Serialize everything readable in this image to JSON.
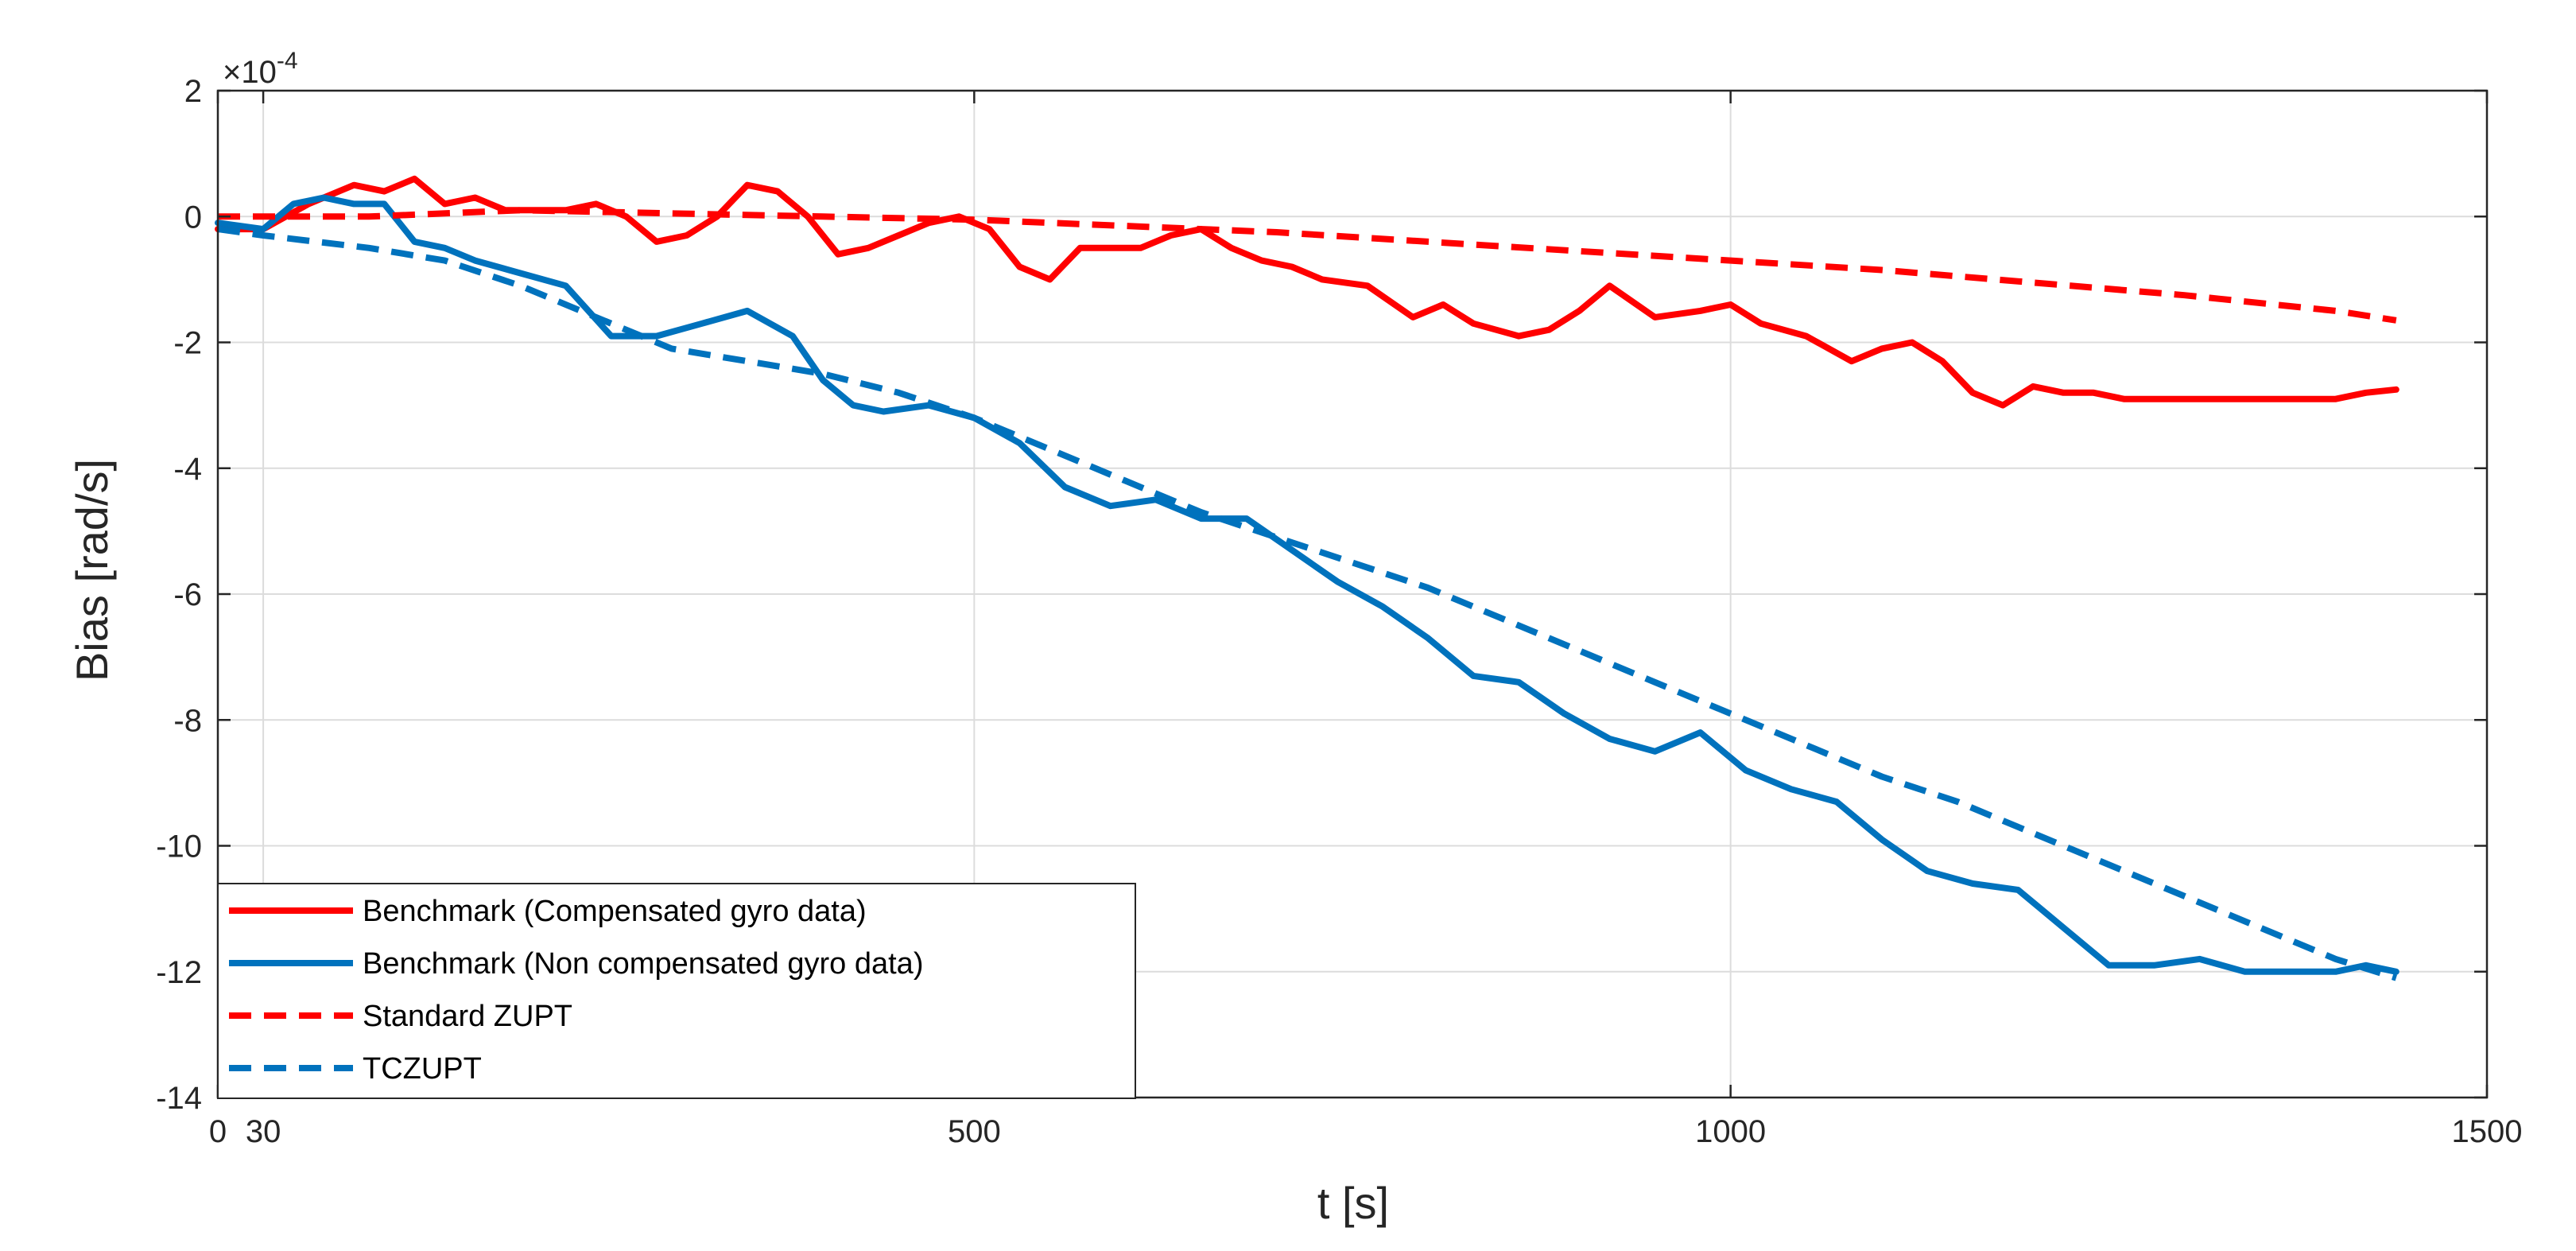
{
  "chart_data": {
    "type": "line",
    "title": "",
    "xlabel": "t [s]",
    "ylabel": "Bias [rad/s]",
    "y_exponent_label": "×10",
    "y_exponent_power": "-4",
    "xlim": [
      0,
      1500
    ],
    "ylim": [
      -14,
      2
    ],
    "xticks": [
      0,
      30,
      500,
      1000,
      1500
    ],
    "xtick_labels": [
      "0",
      "30",
      "500",
      "1000",
      "1500"
    ],
    "yticks": [
      2,
      0,
      -2,
      -4,
      -6,
      -8,
      -10,
      -12,
      -14
    ],
    "ytick_labels": [
      "2",
      "0",
      "-2",
      "-4",
      "-6",
      "-8",
      "-10",
      "-12",
      "-14"
    ],
    "grid": true,
    "legend_position": "bottom-left",
    "series": [
      {
        "name": "Benchmark (Compensated gyro data)",
        "color": "#ff0000",
        "style": "solid",
        "x": [
          0,
          30,
          60,
          90,
          110,
          130,
          150,
          170,
          190,
          210,
          230,
          250,
          270,
          290,
          310,
          330,
          350,
          370,
          390,
          410,
          430,
          450,
          470,
          490,
          510,
          530,
          550,
          570,
          590,
          610,
          630,
          650,
          670,
          690,
          710,
          730,
          760,
          790,
          810,
          830,
          860,
          880,
          900,
          920,
          950,
          980,
          1000,
          1020,
          1050,
          1080,
          1100,
          1120,
          1140,
          1160,
          1180,
          1200,
          1220,
          1240,
          1260,
          1280,
          1300,
          1320,
          1340,
          1360,
          1380,
          1400,
          1420,
          1440
        ],
        "values": [
          -0.2,
          -0.2,
          0.2,
          0.5,
          0.4,
          0.6,
          0.2,
          0.3,
          0.1,
          0.1,
          0.1,
          0.2,
          0.0,
          -0.4,
          -0.3,
          0.0,
          0.5,
          0.4,
          0.0,
          -0.6,
          -0.5,
          -0.3,
          -0.1,
          0.0,
          -0.2,
          -0.8,
          -1.0,
          -0.5,
          -0.5,
          -0.5,
          -0.3,
          -0.2,
          -0.5,
          -0.7,
          -0.8,
          -1.0,
          -1.1,
          -1.6,
          -1.4,
          -1.7,
          -1.9,
          -1.8,
          -1.5,
          -1.1,
          -1.6,
          -1.5,
          -1.4,
          -1.7,
          -1.9,
          -2.3,
          -2.1,
          -2.0,
          -2.3,
          -2.8,
          -3.0,
          -2.7,
          -2.8,
          -2.8,
          -2.9,
          -2.9,
          -2.9,
          -2.9,
          -2.9,
          -2.9,
          -2.9,
          -2.9,
          -2.8,
          -2.75
        ]
      },
      {
        "name": "Benchmark (Non compensated gyro data)",
        "color": "#0072bd",
        "style": "solid",
        "x": [
          0,
          30,
          50,
          70,
          90,
          110,
          130,
          150,
          170,
          200,
          230,
          260,
          290,
          320,
          350,
          380,
          400,
          420,
          440,
          470,
          500,
          530,
          560,
          590,
          620,
          650,
          680,
          710,
          740,
          770,
          800,
          830,
          860,
          890,
          920,
          950,
          980,
          1010,
          1040,
          1070,
          1100,
          1130,
          1160,
          1190,
          1220,
          1250,
          1280,
          1310,
          1340,
          1370,
          1400,
          1420,
          1440
        ],
        "values": [
          -0.1,
          -0.2,
          0.2,
          0.3,
          0.2,
          0.2,
          -0.4,
          -0.5,
          -0.7,
          -0.9,
          -1.1,
          -1.9,
          -1.9,
          -1.7,
          -1.5,
          -1.9,
          -2.6,
          -3.0,
          -3.1,
          -3.0,
          -3.2,
          -3.6,
          -4.3,
          -4.6,
          -4.5,
          -4.8,
          -4.8,
          -5.3,
          -5.8,
          -6.2,
          -6.7,
          -7.3,
          -7.4,
          -7.9,
          -8.3,
          -8.5,
          -8.2,
          -8.8,
          -9.1,
          -9.3,
          -9.9,
          -10.4,
          -10.6,
          -10.7,
          -11.3,
          -11.9,
          -11.9,
          -11.8,
          -12.0,
          -12.0,
          -12.0,
          -11.9,
          -12.0
        ]
      },
      {
        "name": "Standard ZUPT",
        "color": "#ff0000",
        "style": "dashed",
        "x": [
          0,
          100,
          200,
          300,
          400,
          500,
          600,
          700,
          800,
          900,
          1000,
          1100,
          1200,
          1300,
          1400,
          1440
        ],
        "values": [
          0.0,
          0.0,
          0.1,
          0.05,
          0.0,
          -0.05,
          -0.15,
          -0.25,
          -0.4,
          -0.55,
          -0.7,
          -0.85,
          -1.05,
          -1.25,
          -1.5,
          -1.65
        ]
      },
      {
        "name": "TCZUPT",
        "color": "#0072bd",
        "style": "dashed",
        "x": [
          0,
          30,
          100,
          150,
          200,
          250,
          300,
          350,
          400,
          450,
          500,
          550,
          600,
          650,
          700,
          750,
          800,
          850,
          900,
          950,
          1000,
          1050,
          1100,
          1150,
          1200,
          1250,
          1300,
          1350,
          1400,
          1440
        ],
        "values": [
          -0.2,
          -0.3,
          -0.5,
          -0.7,
          -1.1,
          -1.6,
          -2.1,
          -2.3,
          -2.5,
          -2.8,
          -3.2,
          -3.7,
          -4.2,
          -4.7,
          -5.1,
          -5.5,
          -5.9,
          -6.4,
          -6.9,
          -7.4,
          -7.9,
          -8.4,
          -8.9,
          -9.3,
          -9.8,
          -10.3,
          -10.8,
          -11.3,
          -11.8,
          -12.1
        ]
      }
    ]
  }
}
